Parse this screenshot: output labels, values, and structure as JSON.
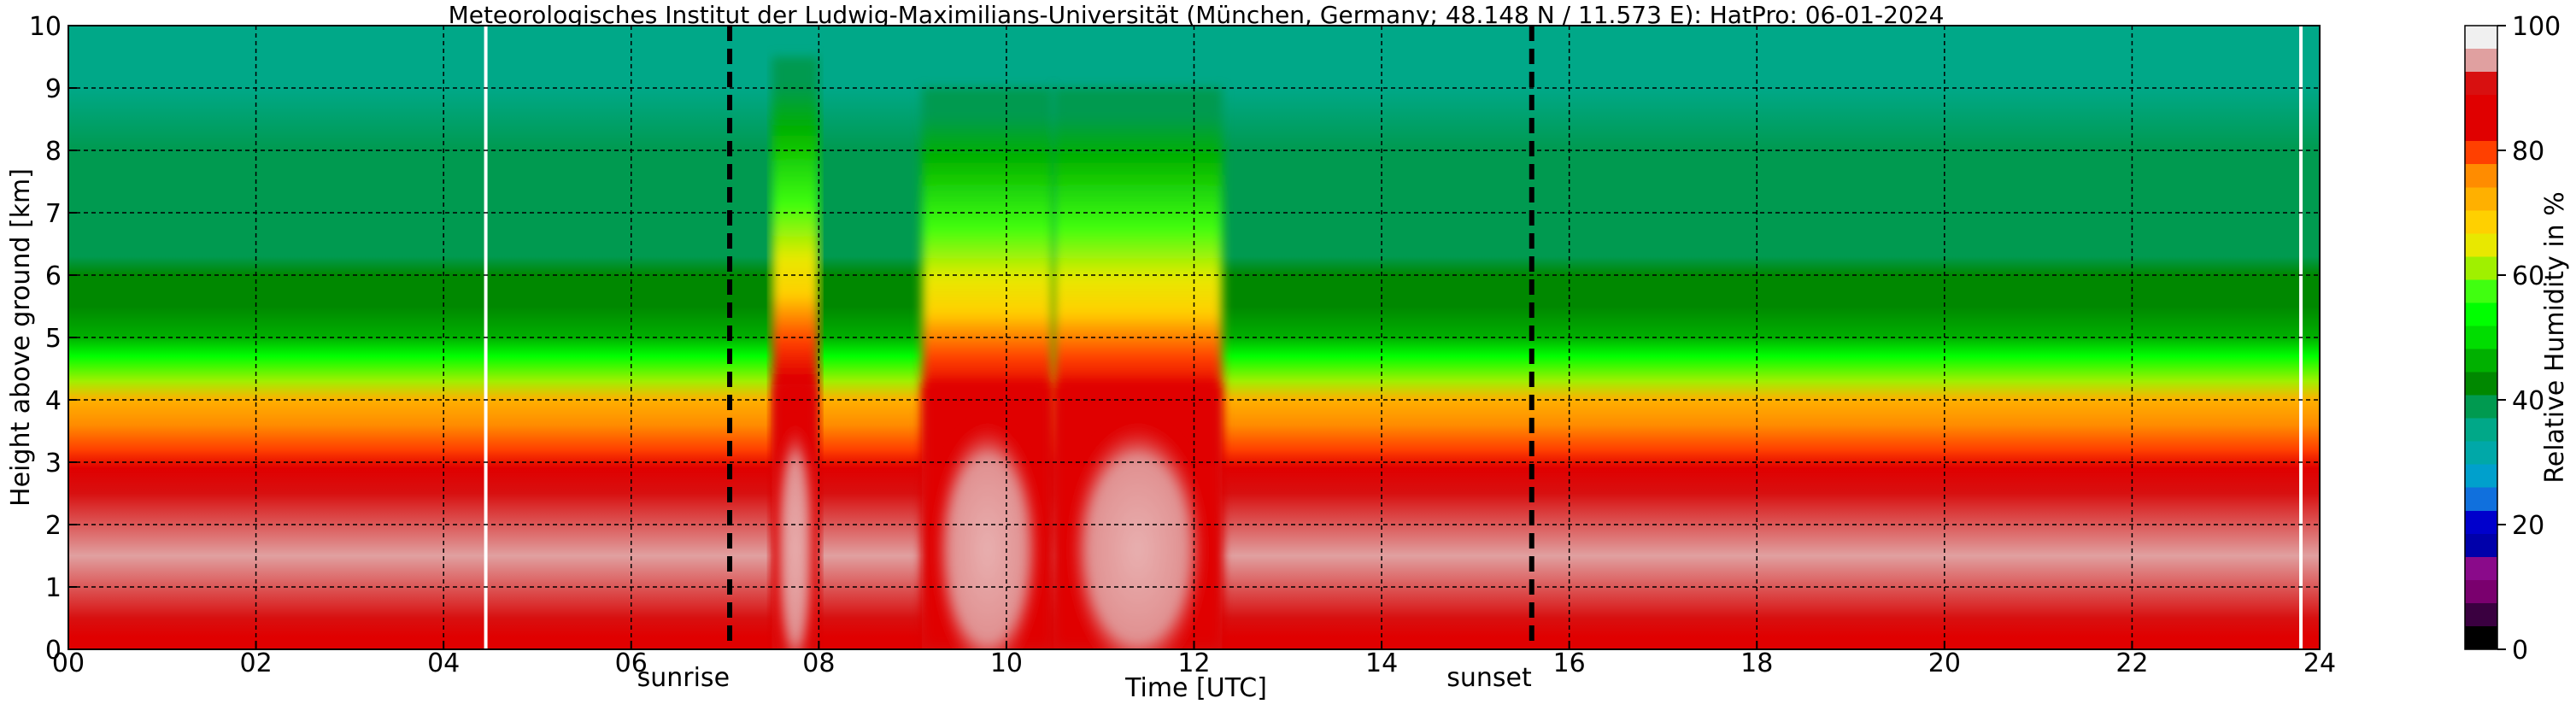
{
  "chart_data": {
    "type": "heatmap",
    "title": "Meteorologisches Institut der Ludwig-Maximilians-Universität (München, Germany; 48.148 N / 11.573 E):    HatPro: 06-01-2024",
    "xlabel": "Time [UTC]",
    "ylabel": "Height above ground [km]",
    "xlim": [
      0,
      24
    ],
    "ylim": [
      0,
      10
    ],
    "x_ticks": [
      "00",
      "02",
      "04",
      "06",
      "08",
      "10",
      "12",
      "14",
      "16",
      "18",
      "20",
      "22",
      "24"
    ],
    "y_ticks": [
      "0",
      "1",
      "2",
      "3",
      "4",
      "5",
      "6",
      "7",
      "8",
      "9",
      "10"
    ],
    "grid": true,
    "colorbar": {
      "label": "Relative Humidity in %",
      "range": [
        0,
        100
      ],
      "ticks": [
        "0",
        "20",
        "40",
        "60",
        "80",
        "100"
      ],
      "colors": [
        "#000000",
        "#3a0040",
        "#7a006e",
        "#8a0a8a",
        "#0000aa",
        "#0000cc",
        "#1070dd",
        "#00a0cc",
        "#00a8a8",
        "#00a888",
        "#009a50",
        "#008800",
        "#00b000",
        "#00dd00",
        "#00ff00",
        "#40ff10",
        "#a0f000",
        "#e8e800",
        "#ffd000",
        "#ffb000",
        "#ff8c00",
        "#ff4000",
        "#e00000",
        "#e00000",
        "#d81010",
        "#e0a0a0",
        "#f0f0f0"
      ]
    },
    "background_profile": {
      "height_km": [
        0,
        0.2,
        0.5,
        1.5,
        2.5,
        2.9,
        3.2,
        3.6,
        4.0,
        4.3,
        4.7,
        5.0,
        5.5,
        6.0,
        6.3,
        7.0,
        8.0,
        9.0,
        10.0
      ],
      "rh_percent": [
        82,
        85,
        92,
        93,
        92,
        88,
        80,
        76,
        72,
        62,
        55,
        48,
        44,
        44,
        40,
        38,
        38,
        36,
        34
      ]
    },
    "events": [
      {
        "label": "sunrise",
        "time_utc": 7.05
      },
      {
        "label": "sunset",
        "time_utc": 15.6
      }
    ],
    "data_gaps_utc": [
      4.45,
      23.8
    ],
    "moist_episodes": [
      {
        "start_utc": 7.5,
        "end_utc": 8.0,
        "saturated_top_km": 4.3,
        "moist_top_km": 9.5
      },
      {
        "start_utc": 9.1,
        "end_utc": 10.5,
        "saturated_top_km": 4.3,
        "moist_top_km": 9.0
      },
      {
        "start_utc": 10.5,
        "end_utc": 12.3,
        "saturated_top_km": 4.3,
        "moist_top_km": 9.0
      }
    ]
  }
}
